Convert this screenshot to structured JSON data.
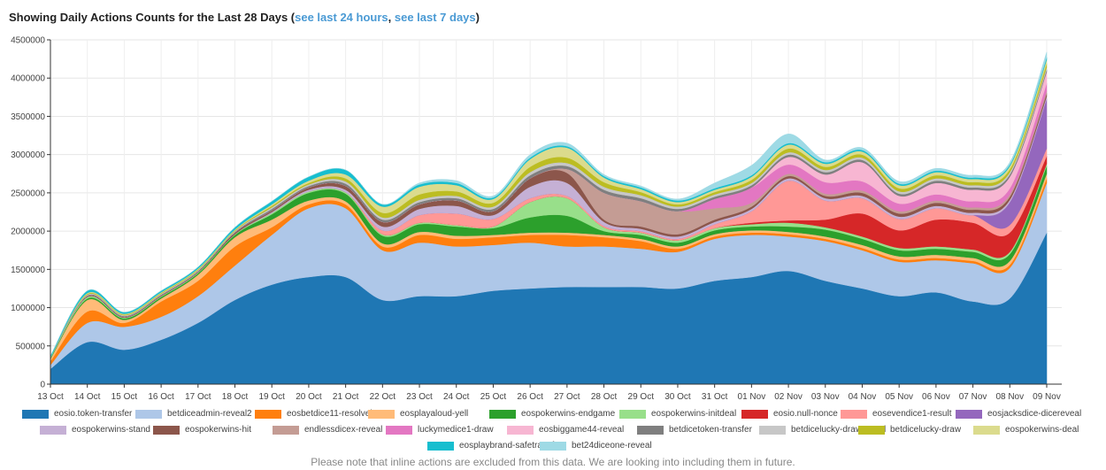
{
  "header": {
    "title_prefix": "Showing Daily Actions Counts for the Last 28 Days (",
    "link_24h": "see last 24 hours",
    "separator": ", ",
    "link_7d": "see last 7 days",
    "title_suffix": ")"
  },
  "note": "Please note that inline actions are excluded from this data. We are looking into including them in future.",
  "chart_data": {
    "type": "area",
    "stacked": true,
    "curve": "smooth",
    "ylim": [
      0,
      4500000
    ],
    "yticks": [
      0,
      500000,
      1000000,
      1500000,
      2000000,
      2500000,
      3000000,
      3500000,
      4000000,
      4500000
    ],
    "ytick_labels": [
      "0",
      "500000",
      "1000000",
      "1500000",
      "2000000",
      "2500000",
      "3000000",
      "3500000",
      "4000000",
      "4500000"
    ],
    "grid": true,
    "legend_position": "bottom",
    "categories": [
      "13 Oct",
      "14 Oct",
      "15 Oct",
      "16 Oct",
      "17 Oct",
      "18 Oct",
      "19 Oct",
      "20 Oct",
      "21 Oct",
      "22 Oct",
      "23 Oct",
      "24 Oct",
      "25 Oct",
      "26 Oct",
      "27 Oct",
      "28 Oct",
      "29 Oct",
      "30 Oct",
      "31 Oct",
      "01 Nov",
      "02 Nov",
      "03 Nov",
      "04 Nov",
      "05 Nov",
      "06 Nov",
      "07 Nov",
      "08 Nov",
      "09 Nov"
    ],
    "series": [
      {
        "name": "eosio.token-transfer",
        "color": "#1f77b4",
        "values": [
          200000,
          550000,
          450000,
          580000,
          800000,
          1100000,
          1300000,
          1400000,
          1400000,
          1100000,
          1150000,
          1150000,
          1220000,
          1250000,
          1270000,
          1270000,
          1270000,
          1250000,
          1350000,
          1400000,
          1480000,
          1350000,
          1250000,
          1150000,
          1200000,
          1080000,
          1120000,
          1980000
        ]
      },
      {
        "name": "betdiceadmin-reveal2",
        "color": "#aec7e8",
        "values": [
          50000,
          250000,
          300000,
          300000,
          350000,
          450000,
          650000,
          900000,
          900000,
          650000,
          700000,
          650000,
          600000,
          600000,
          530000,
          530000,
          500000,
          480000,
          550000,
          550000,
          450000,
          520000,
          500000,
          450000,
          420000,
          500000,
          400000,
          650000
        ]
      },
      {
        "name": "eosbetdice11-resolvebet",
        "color": "#ff7f0e",
        "values": [
          50000,
          150000,
          50000,
          200000,
          200000,
          250000,
          100000,
          50000,
          50000,
          50000,
          100000,
          100000,
          100000,
          100000,
          150000,
          120000,
          100000,
          40000,
          30000,
          30000,
          30000,
          30000,
          30000,
          30000,
          30000,
          30000,
          40000,
          60000
        ]
      },
      {
        "name": "eosplayaloud-yell",
        "color": "#ffbb78",
        "values": [
          30000,
          150000,
          40000,
          40000,
          80000,
          120000,
          100000,
          50000,
          40000,
          40000,
          40000,
          40000,
          30000,
          30000,
          30000,
          30000,
          30000,
          30000,
          30000,
          30000,
          30000,
          30000,
          40000,
          40000,
          40000,
          40000,
          50000,
          60000
        ]
      },
      {
        "name": "eospokerwins-endgame",
        "color": "#2ca02c",
        "values": [
          10000,
          20000,
          20000,
          20000,
          20000,
          30000,
          70000,
          100000,
          100000,
          100000,
          100000,
          120000,
          90000,
          200000,
          220000,
          50000,
          50000,
          50000,
          50000,
          50000,
          70000,
          90000,
          80000,
          80000,
          80000,
          80000,
          90000,
          100000
        ]
      },
      {
        "name": "eospokerwins-initdeal",
        "color": "#98df8a",
        "values": [
          10000,
          20000,
          10000,
          10000,
          10000,
          10000,
          20000,
          20000,
          20000,
          20000,
          20000,
          20000,
          20000,
          200000,
          230000,
          50000,
          30000,
          30000,
          30000,
          30000,
          50000,
          30000,
          30000,
          30000,
          30000,
          30000,
          30000,
          30000
        ]
      },
      {
        "name": "eosio.null-nonce",
        "color": "#d62728",
        "values": [
          0,
          0,
          0,
          0,
          0,
          0,
          0,
          0,
          0,
          0,
          0,
          0,
          0,
          0,
          0,
          0,
          0,
          0,
          0,
          20000,
          30000,
          100000,
          300000,
          230000,
          350000,
          350000,
          250000,
          100000
        ]
      },
      {
        "name": "eosevendice1-result",
        "color": "#ff9896",
        "values": [
          0,
          0,
          0,
          0,
          0,
          0,
          0,
          0,
          0,
          50000,
          100000,
          150000,
          100000,
          50000,
          30000,
          20000,
          20000,
          20000,
          50000,
          150000,
          520000,
          250000,
          200000,
          150000,
          150000,
          100000,
          100000,
          100000
        ]
      },
      {
        "name": "eosjacksdice-dicereveal",
        "color": "#9467bd",
        "values": [
          0,
          0,
          0,
          0,
          0,
          0,
          0,
          0,
          0,
          0,
          0,
          0,
          0,
          0,
          0,
          0,
          0,
          0,
          0,
          0,
          0,
          0,
          0,
          0,
          0,
          0,
          300000,
          650000
        ]
      },
      {
        "name": "eospokerwins-stand",
        "color": "#c5b0d5",
        "values": [
          0,
          0,
          0,
          0,
          0,
          0,
          10000,
          20000,
          30000,
          50000,
          80000,
          100000,
          50000,
          150000,
          170000,
          50000,
          30000,
          30000,
          30000,
          30000,
          30000,
          30000,
          30000,
          30000,
          30000,
          30000,
          30000,
          30000
        ]
      },
      {
        "name": "eospokerwins-hit",
        "color": "#8c564b",
        "values": [
          0,
          10000,
          10000,
          10000,
          10000,
          20000,
          20000,
          30000,
          50000,
          60000,
          60000,
          70000,
          50000,
          110000,
          130000,
          30000,
          30000,
          30000,
          30000,
          30000,
          30000,
          30000,
          40000,
          40000,
          40000,
          40000,
          40000,
          40000
        ]
      },
      {
        "name": "endlessdicex-reveal",
        "color": "#c49c94",
        "values": [
          0,
          0,
          0,
          0,
          0,
          0,
          0,
          0,
          0,
          0,
          0,
          0,
          0,
          0,
          50000,
          350000,
          330000,
          300000,
          150000,
          50000,
          30000,
          30000,
          30000,
          30000,
          30000,
          30000,
          30000,
          30000
        ]
      },
      {
        "name": "luckymedice1-draw",
        "color": "#e377c2",
        "values": [
          0,
          0,
          0,
          0,
          0,
          0,
          0,
          0,
          0,
          0,
          0,
          0,
          0,
          0,
          0,
          0,
          0,
          0,
          120000,
          200000,
          120000,
          150000,
          120000,
          100000,
          80000,
          80000,
          80000,
          100000
        ]
      },
      {
        "name": "eosbiggame44-reveal",
        "color": "#f7b6d2",
        "values": [
          0,
          0,
          0,
          0,
          0,
          0,
          0,
          0,
          0,
          0,
          0,
          0,
          0,
          0,
          0,
          0,
          0,
          0,
          0,
          0,
          100000,
          100000,
          250000,
          100000,
          150000,
          150000,
          150000,
          150000
        ]
      },
      {
        "name": "betdicetoken-transfer",
        "color": "#7f7f7f",
        "values": [
          0,
          10000,
          10000,
          10000,
          10000,
          10000,
          20000,
          20000,
          30000,
          30000,
          30000,
          30000,
          30000,
          40000,
          40000,
          40000,
          40000,
          30000,
          30000,
          30000,
          30000,
          30000,
          30000,
          30000,
          30000,
          30000,
          30000,
          30000
        ]
      },
      {
        "name": "betdicelucky-drawreveal",
        "color": "#c7c7c7",
        "values": [
          0,
          10000,
          10000,
          10000,
          10000,
          10000,
          20000,
          20000,
          30000,
          30000,
          30000,
          30000,
          30000,
          40000,
          40000,
          40000,
          40000,
          30000,
          30000,
          30000,
          30000,
          30000,
          30000,
          30000,
          30000,
          30000,
          30000,
          30000
        ]
      },
      {
        "name": "betdicelucky-draw",
        "color": "#bcbd22",
        "values": [
          0,
          10000,
          10000,
          10000,
          10000,
          10000,
          20000,
          20000,
          40000,
          60000,
          70000,
          60000,
          50000,
          70000,
          70000,
          60000,
          40000,
          30000,
          30000,
          40000,
          50000,
          40000,
          40000,
          40000,
          40000,
          40000,
          40000,
          50000
        ]
      },
      {
        "name": "eospokerwins-deal",
        "color": "#dbdb8d",
        "values": [
          0,
          10000,
          10000,
          10000,
          10000,
          10000,
          20000,
          30000,
          50000,
          80000,
          100000,
          80000,
          50000,
          100000,
          130000,
          60000,
          40000,
          30000,
          30000,
          40000,
          50000,
          40000,
          40000,
          40000,
          40000,
          40000,
          40000,
          50000
        ]
      },
      {
        "name": "eosplaybrand-safetransfer",
        "color": "#17becf",
        "values": [
          20000,
          30000,
          20000,
          20000,
          20000,
          30000,
          40000,
          50000,
          60000,
          30000,
          30000,
          30000,
          20000,
          20000,
          20000,
          20000,
          20000,
          20000,
          20000,
          20000,
          20000,
          20000,
          20000,
          20000,
          20000,
          20000,
          20000,
          30000
        ]
      },
      {
        "name": "bet24diceone-reveal",
        "color": "#9edae5",
        "values": [
          0,
          0,
          0,
          0,
          0,
          0,
          0,
          0,
          0,
          0,
          20000,
          30000,
          20000,
          40000,
          40000,
          20000,
          20000,
          20000,
          70000,
          130000,
          120000,
          30000,
          30000,
          30000,
          30000,
          30000,
          30000,
          70000
        ]
      }
    ]
  }
}
